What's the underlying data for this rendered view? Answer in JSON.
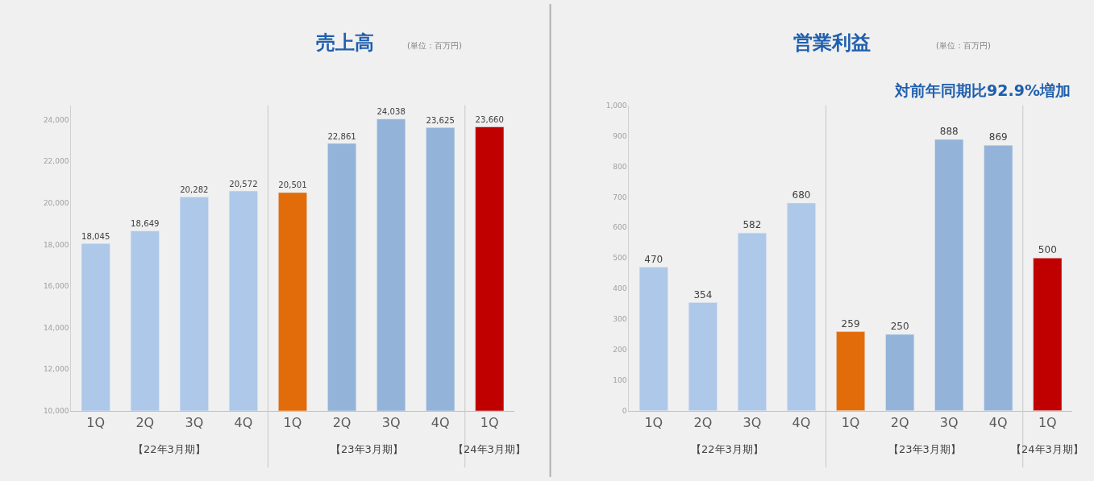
{
  "chart_data": [
    {
      "type": "bar",
      "title": "売上高",
      "ylabel": "(単位：百万円)",
      "categories": [
        "1Q",
        "2Q",
        "3Q",
        "4Q",
        "1Q",
        "2Q",
        "3Q",
        "4Q",
        "1Q"
      ],
      "values": [
        18045,
        18649,
        20282,
        20572,
        20501,
        22861,
        24038,
        23625,
        23660
      ],
      "colors": [
        "#adc8e8",
        "#adc8e8",
        "#adc8e8",
        "#adc8e8",
        "#e36c0a",
        "#94b3d9",
        "#94b3d9",
        "#94b3d9",
        "#c00000"
      ],
      "ylim": [
        10000,
        24700
      ],
      "yticks": [
        {
          "value": 10000,
          "label": "10,000"
        },
        {
          "value": 12000,
          "label": "12,000"
        },
        {
          "value": 14000,
          "label": "14,000"
        },
        {
          "value": 16000,
          "label": "16,000"
        },
        {
          "value": 18000,
          "label": "18,000"
        },
        {
          "value": 20000,
          "label": "20,000"
        },
        {
          "value": 22000,
          "label": "22,000"
        },
        {
          "value": 24000,
          "label": "24,000"
        }
      ],
      "value_labels": [
        "18,045",
        "18,649",
        "20,282",
        "20,572",
        "20,501",
        "22,861",
        "24,038",
        "23,625",
        "23,660"
      ],
      "grid": false,
      "legend": false,
      "annotations": [
        "【22年3月期】",
        "【23年3月期】",
        "【24年3月期】"
      ]
    },
    {
      "type": "bar",
      "title": "営業利益",
      "ylabel": "(単位：百万円)",
      "subtitle": "対前年同期比92.9%増加",
      "categories": [
        "1Q",
        "2Q",
        "3Q",
        "4Q",
        "1Q",
        "2Q",
        "3Q",
        "4Q",
        "1Q"
      ],
      "values": [
        470,
        354,
        582,
        680,
        259,
        250,
        888,
        869,
        500
      ],
      "colors": [
        "#adc8e8",
        "#adc8e8",
        "#adc8e8",
        "#adc8e8",
        "#e36c0a",
        "#94b3d9",
        "#94b3d9",
        "#94b3d9",
        "#c00000"
      ],
      "ylim": [
        0,
        1000
      ],
      "yticks": [
        0,
        100,
        200,
        300,
        400,
        500,
        600,
        700,
        800,
        900,
        {
          "value": 1000,
          "label": "1,000"
        }
      ],
      "data_labels": true,
      "grid": false,
      "legend": false,
      "annotations": [
        "【22年3月期】",
        "【23年3月期】",
        "【24年3月期】"
      ]
    }
  ]
}
